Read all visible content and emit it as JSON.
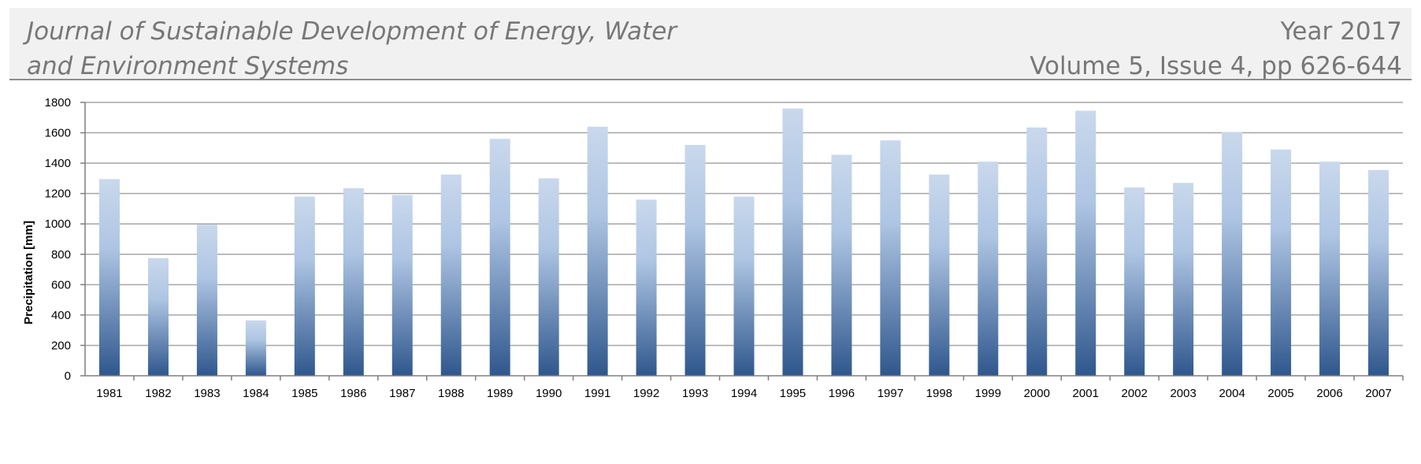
{
  "header": {
    "journal_line1": "Journal of Sustainable Development of Energy, Water",
    "journal_line2": "and Environment Systems",
    "year": "Year 2017",
    "volume_issue": "Volume 5, Issue 4, pp 626-644"
  },
  "chart_data": {
    "type": "bar",
    "title": "",
    "xlabel": "",
    "ylabel": "Precipitation [mm]",
    "ylim": [
      0,
      1800
    ],
    "yticks": [
      0,
      200,
      400,
      600,
      800,
      1000,
      1200,
      1400,
      1600,
      1800
    ],
    "grid": true,
    "categories": [
      "1981",
      "1982",
      "1983",
      "1984",
      "1985",
      "1986",
      "1987",
      "1988",
      "1989",
      "1990",
      "1991",
      "1992",
      "1993",
      "1994",
      "1995",
      "1996",
      "1997",
      "1998",
      "1999",
      "2000",
      "2001",
      "2002",
      "2003",
      "2004",
      "2005",
      "2006",
      "2007"
    ],
    "values": [
      1295,
      775,
      995,
      365,
      1180,
      1235,
      1190,
      1325,
      1560,
      1300,
      1640,
      1160,
      1520,
      1180,
      1760,
      1455,
      1550,
      1325,
      1410,
      1635,
      1745,
      1240,
      1270,
      1605,
      1490,
      1410,
      1355
    ],
    "colors": {
      "bar_top": "#c9d8ec",
      "bar_bottom": "#2f578d",
      "grid": "#a6a6a6",
      "axis": "#7f7f7f"
    }
  }
}
